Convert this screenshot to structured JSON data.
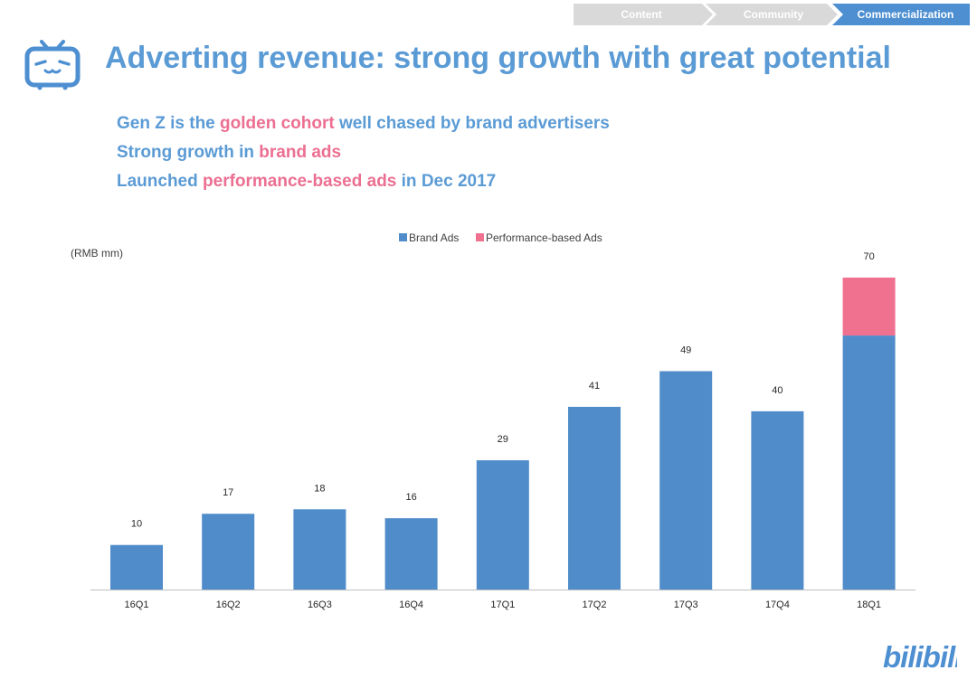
{
  "breadcrumb": {
    "items": [
      {
        "label": "Content",
        "active": false
      },
      {
        "label": "Community",
        "active": false
      },
      {
        "label": "Commercialization",
        "active": true
      }
    ]
  },
  "logo": {
    "icon": "tv-mascot-icon"
  },
  "title": "Adverting revenue:  strong growth with great potential",
  "bullets": [
    {
      "parts": [
        {
          "text": "Gen Z is the ",
          "highlight": false
        },
        {
          "text": "golden cohort",
          "highlight": true
        },
        {
          "text": " well chased by brand advertisers",
          "highlight": false
        }
      ]
    },
    {
      "parts": [
        {
          "text": "Strong growth in ",
          "highlight": false
        },
        {
          "text": "brand ads",
          "highlight": true
        }
      ]
    },
    {
      "parts": [
        {
          "text": "Launched ",
          "highlight": false
        },
        {
          "text": "performance-based ads",
          "highlight": true
        },
        {
          "text": " in Dec 2017",
          "highlight": false
        }
      ]
    }
  ],
  "colors": {
    "primary": "#5b9bd5",
    "highlight": "#ec6f91",
    "brand_ads": "#4f8cc9",
    "performance_ads": "#f0708f",
    "crumb_inactive": "#d9d9d9",
    "crumb_active": "#4d8fd1"
  },
  "chart_data": {
    "type": "bar",
    "stacked": true,
    "unit_label": "(RMB mm)",
    "categories": [
      "16Q1",
      "16Q2",
      "16Q3",
      "16Q4",
      "17Q1",
      "17Q2",
      "17Q3",
      "17Q4",
      "18Q1"
    ],
    "series": [
      {
        "name": "Brand Ads",
        "values": [
          10,
          17,
          18,
          16,
          29,
          41,
          49,
          40,
          57
        ]
      },
      {
        "name": "Performance-based Ads",
        "values": [
          0,
          0,
          0,
          0,
          0,
          0,
          0,
          0,
          13
        ]
      }
    ],
    "totals": [
      10,
      17,
      18,
      16,
      29,
      41,
      49,
      40,
      70
    ],
    "ylim": [
      0,
      70
    ],
    "legend": "top-center",
    "grid": false
  },
  "footer_logo": {
    "text": "bilibili"
  }
}
